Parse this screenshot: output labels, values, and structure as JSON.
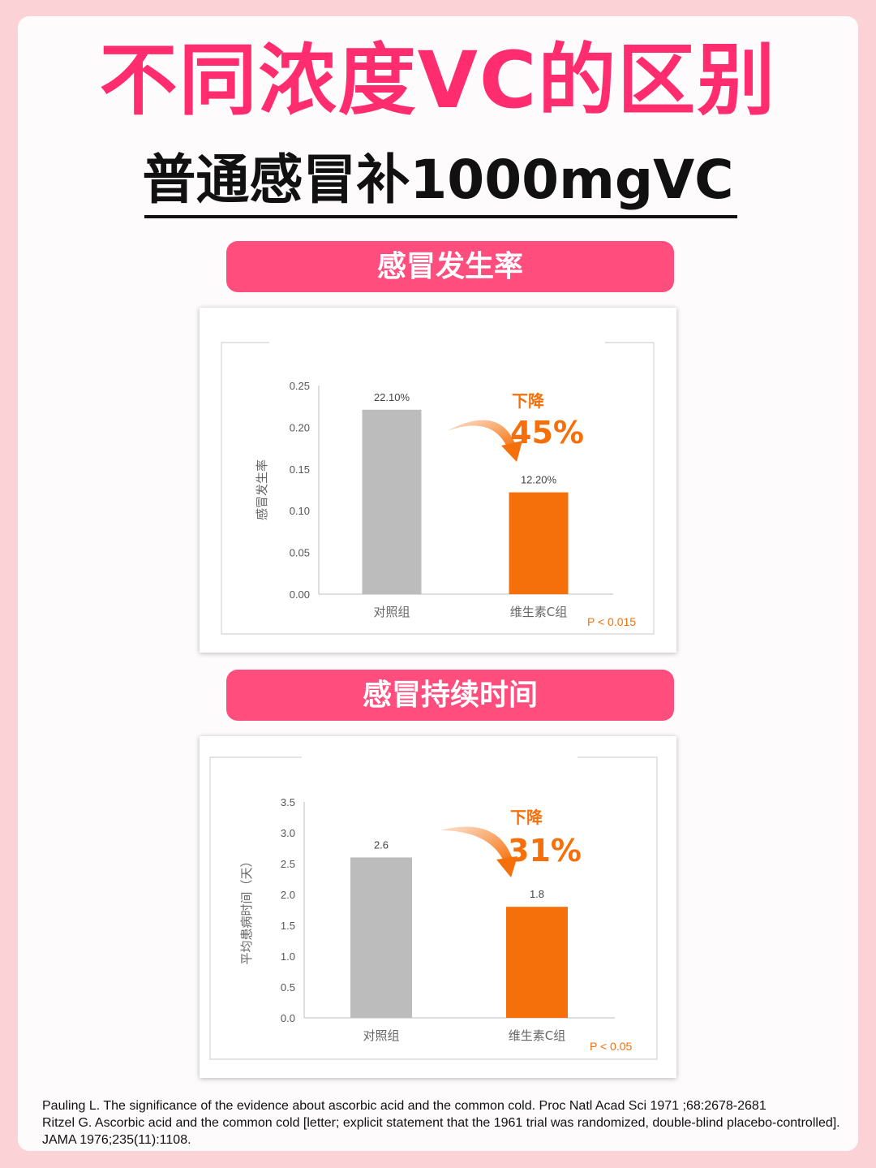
{
  "title": "不同浓度VC的区别",
  "subtitle": "普通感冒补1000mgVC",
  "section1_label": "感冒发生率",
  "section2_label": "感冒持续时间",
  "colors": {
    "control": "#bcbcbc",
    "vitamin_c": "#f5700a",
    "accent": "#ff2d6f",
    "pill": "#ff4d7d"
  },
  "chart_data": [
    {
      "type": "bar",
      "categories": [
        "对照组",
        "维生素C组"
      ],
      "values": [
        0.221,
        0.122
      ],
      "value_labels": [
        "22.10%",
        "12.20%"
      ],
      "ylabel": "感冒发生率",
      "ylim": [
        0,
        0.25
      ],
      "yticks": [
        "0.25",
        "0.20",
        "0.15",
        "0.10",
        "0.05",
        "0.00"
      ],
      "annotation_top": "下降",
      "annotation_value": "45%",
      "p_value": "P < 0.015"
    },
    {
      "type": "bar",
      "categories": [
        "对照组",
        "维生素C组"
      ],
      "values": [
        2.6,
        1.8
      ],
      "value_labels": [
        "2.6",
        "1.8"
      ],
      "ylabel": "平均患病时间（天）",
      "ylim": [
        0,
        3.5
      ],
      "yticks": [
        "3.5",
        "3.0",
        "2.5",
        "2.0",
        "1.5",
        "1.0",
        "0.5",
        "0.0"
      ],
      "annotation_top": "下降",
      "annotation_value": "31%",
      "p_value": "P < 0.05"
    }
  ],
  "references": [
    "Pauling L. The significance of the evidence about ascorbic acid and the common cold. Proc Natl Acad Sci 1971 ;68:2678-2681",
    "Ritzel G. Ascorbic acid and the common cold [letter; explicit statement that the 1961 trial was randomized, double-blind placebo-controlled]. JAMA 1976;235(11):1108."
  ]
}
